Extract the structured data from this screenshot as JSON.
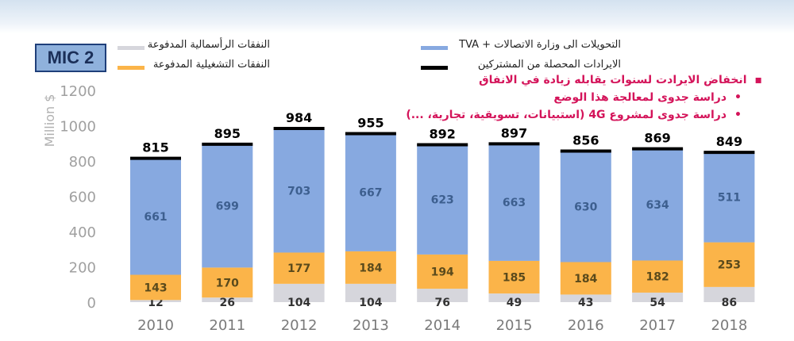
{
  "badge": "MIC 2",
  "legend": {
    "capex": "النفقات الرأسمالية المدفوعة",
    "opex": "النفقات التشغيلية المدفوعة",
    "transfers": "التحويلات الى وزارة الاتصالات + TVA",
    "revenue": "الايرادات المحصلة من المشتركين"
  },
  "bullets": [
    {
      "marker": "▪",
      "text": "انخفاض الايرادت لسنوات يقابله زيادة في الانفاق"
    },
    {
      "marker": "•",
      "text": "دراسة جدوى لمعالجة هذا الوضع"
    },
    {
      "marker": "•",
      "text": "دراسة جدوى لمشروع 4G (استبيانات، تسويقية، تجارية، ...)"
    }
  ],
  "colors": {
    "capex": "#d6d6dc",
    "opex": "#fbb449",
    "transfers": "#87a9e0",
    "revenue": "#000000",
    "bullet_text": "#d4145a"
  },
  "chart_data": {
    "type": "bar",
    "stacked": true,
    "categories": [
      "2010",
      "2011",
      "2012",
      "2013",
      "2014",
      "2015",
      "2016",
      "2017",
      "2018"
    ],
    "series": [
      {
        "name": "النفقات الرأسمالية المدفوعة",
        "values": [
          12,
          26,
          104,
          104,
          76,
          49,
          43,
          54,
          86
        ]
      },
      {
        "name": "النفقات التشغيلية المدفوعة",
        "values": [
          143,
          170,
          177,
          184,
          194,
          185,
          184,
          182,
          253
        ]
      },
      {
        "name": "التحويلات الى وزارة الاتصالات + TVA",
        "values": [
          661,
          699,
          703,
          667,
          623,
          663,
          630,
          634,
          511
        ]
      }
    ],
    "revenue": {
      "name": "الايرادات المحصلة من المشتركين",
      "values": [
        815,
        895,
        984,
        955,
        892,
        897,
        856,
        869,
        849
      ]
    },
    "ylabel": "Million $",
    "ylim": [
      0,
      1200
    ],
    "yticks": [
      0,
      200,
      400,
      600,
      800,
      1000,
      1200
    ],
    "grid": false,
    "legend_position": "top"
  }
}
